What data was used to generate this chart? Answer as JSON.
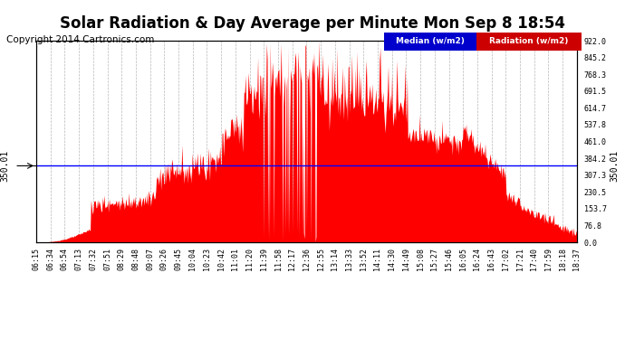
{
  "title": "Solar Radiation & Day Average per Minute Mon Sep 8 18:54",
  "copyright": "Copyright 2014 Cartronics.com",
  "median_value": 350.01,
  "y_ticks_right": [
    0.0,
    76.8,
    153.7,
    230.5,
    307.3,
    350.01,
    384.2,
    461.0,
    537.8,
    614.7,
    691.5,
    768.3,
    845.2,
    922.0
  ],
  "y_labels_right": [
    "0.0",
    "76.8",
    "153.7",
    "230.5",
    "307.3",
    "384.2",
    "461.0",
    "537.8",
    "614.7",
    "691.5",
    "768.3",
    "845.2",
    "922.0"
  ],
  "y_ticks_right_vals": [
    0.0,
    76.8,
    153.7,
    230.5,
    307.3,
    384.2,
    461.0,
    537.8,
    614.7,
    691.5,
    768.3,
    845.2,
    922.0
  ],
  "x_tick_labels": [
    "06:15",
    "06:34",
    "06:54",
    "07:13",
    "07:32",
    "07:51",
    "08:29",
    "08:48",
    "09:07",
    "09:26",
    "09:45",
    "10:04",
    "10:23",
    "10:42",
    "11:01",
    "11:20",
    "11:39",
    "11:58",
    "12:17",
    "12:36",
    "12:55",
    "13:14",
    "13:33",
    "13:52",
    "14:11",
    "14:30",
    "14:49",
    "15:08",
    "15:27",
    "15:46",
    "16:05",
    "16:24",
    "16:43",
    "17:02",
    "17:21",
    "17:40",
    "17:59",
    "18:18",
    "18:37"
  ],
  "background_color": "#ffffff",
  "fill_color": "#ff0000",
  "line_color": "#0000ff",
  "grid_color": "#b0b0b0",
  "legend_median_bg": "#0000cc",
  "legend_radiation_bg": "#cc0000",
  "title_fontsize": 12,
  "copyright_fontsize": 7.5,
  "tick_fontsize": 6,
  "y_max": 922.0,
  "y_min": 0.0
}
